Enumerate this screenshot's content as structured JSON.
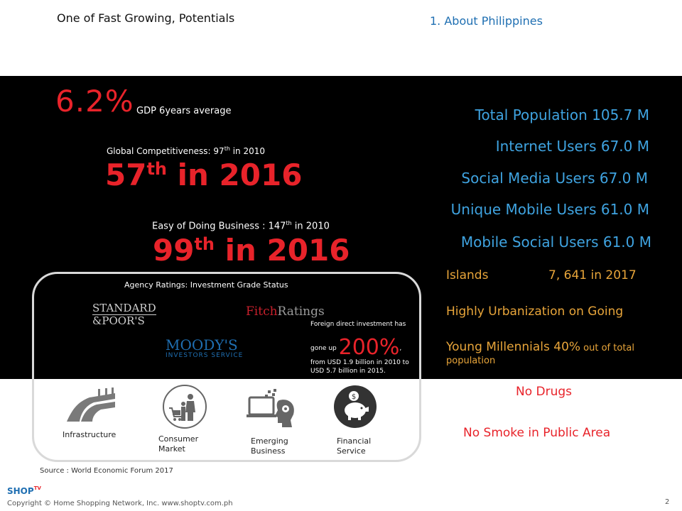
{
  "header": {
    "title": "One of Fast Growing, Potentials",
    "section": "1. About Philippines"
  },
  "gdp": {
    "value": "6.2%",
    "label": "GDP 6years average"
  },
  "competitiveness": {
    "label_prefix": "Global Competitiveness: 97",
    "label_sup": "th",
    "label_suffix": " in 2010",
    "value_main": "57",
    "value_sup": "th",
    "value_suffix": " in 2016"
  },
  "doing_business": {
    "label_prefix": "Easy of Doing Business : 147",
    "label_sup": "th",
    "label_suffix": " in 2010",
    "value_main": "99",
    "value_sup": "th",
    "value_suffix": " in  2016"
  },
  "stats": {
    "population": "Total Population 105.7 M",
    "internet": "Internet Users 67.0 M",
    "social": "Social Media Users 67.0 M",
    "mobile": "Unique Mobile Users 61.0 M",
    "mobile_social": "Mobile Social Users 61.0 M"
  },
  "facts": {
    "islands_label": "Islands",
    "islands_value": "7, 641 in 2017",
    "urbanization": "Highly Urbanization on Going",
    "millennials_main": "Young Millennials ",
    "millennials_pct": "40%",
    "millennials_rest": " out of total population",
    "no_drugs": "No Drugs",
    "no_smoke": "No Smoke in Public Area"
  },
  "agency": {
    "title": "Agency Ratings: Investment Grade Status",
    "sp_line1": "STANDARD",
    "sp_line2": "&POOR'S",
    "fitch_1": "Fitch",
    "fitch_2": "Ratings",
    "moodys_1": "MOODY'S",
    "moodys_2": "INVESTORS SERVICE"
  },
  "fdi": {
    "line1": "Foreign direct investment has",
    "line2_prefix": "gone up ",
    "pct": "200%",
    "line2_suffix": ",",
    "line3": "from USD 1.9 billion in 2010 to",
    "line4": "USD 5.7 billion in 2015."
  },
  "categories": {
    "infrastructure": "Infrastructure",
    "consumer_1": "Consumer",
    "consumer_2": "Market",
    "emerging_1": "Emerging",
    "emerging_2": "Business",
    "financial_1": "Financial",
    "financial_2": "Service"
  },
  "footer": {
    "source": "Source : World Economic Forum 2017",
    "logo": "SHOP",
    "logo_tv": "TV",
    "copyright": "Copyright © Home Shopping Network, Inc. www.shoptv.com.ph",
    "page": "2"
  },
  "colors": {
    "accent_red": "#e8232a",
    "stat_blue": "#3fa3e0",
    "fact_gold": "#e8a53a",
    "panel": "#000000"
  }
}
